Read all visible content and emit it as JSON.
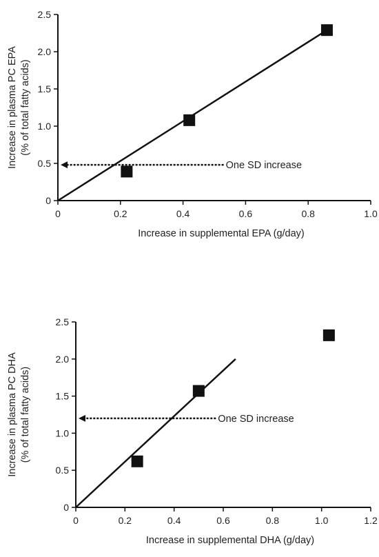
{
  "chart_data": [
    {
      "type": "scatter",
      "xlabel": "Increase in supplemental EPA (g/day)",
      "ylabel_lines": [
        "Increase in plasma PC EPA",
        "(% of total fatty acids)"
      ],
      "xlim": [
        0,
        1.0
      ],
      "ylim": [
        0,
        2.5
      ],
      "xticks": [
        0,
        0.2,
        0.4,
        0.6,
        0.8,
        1.0
      ],
      "xtick_labels": [
        "0",
        "0.2",
        "0.4",
        "0.6",
        "0.8",
        "1.0"
      ],
      "yticks": [
        0,
        0.5,
        1.0,
        1.5,
        2.0,
        2.5
      ],
      "ytick_labels": [
        "0",
        "0.5",
        "1.0",
        "1.5",
        "2.0",
        "2.5"
      ],
      "points": [
        {
          "x": 0.22,
          "y": 0.39
        },
        {
          "x": 0.42,
          "y": 1.08
        },
        {
          "x": 0.86,
          "y": 2.29
        }
      ],
      "fit_line": {
        "x": [
          0,
          0.86
        ],
        "y": [
          0,
          2.29
        ]
      },
      "annotation": {
        "text": "One SD increase",
        "y": 0.48,
        "x_from": 0.53,
        "x_to": 0.0
      }
    },
    {
      "type": "scatter",
      "xlabel": "Increase in supplemental DHA (g/day)",
      "ylabel_lines": [
        "Increase in plasma PC DHA",
        "(% of total fatty acids)"
      ],
      "xlim": [
        0,
        1.2
      ],
      "ylim": [
        0,
        2.5
      ],
      "xticks": [
        0,
        0.2,
        0.4,
        0.6,
        0.8,
        1.0,
        1.2
      ],
      "xtick_labels": [
        "0",
        "0.2",
        "0.4",
        "0.6",
        "0.8",
        "1.0",
        "1.2"
      ],
      "yticks": [
        0,
        0.5,
        1.0,
        1.5,
        2.0,
        2.5
      ],
      "ytick_labels": [
        "0",
        "0.5",
        "1.0",
        "1.5",
        "2.0",
        "2.5"
      ],
      "points": [
        {
          "x": 0.25,
          "y": 0.62
        },
        {
          "x": 0.5,
          "y": 1.57
        },
        {
          "x": 1.03,
          "y": 2.32
        }
      ],
      "fit_line": {
        "x": [
          0,
          0.65
        ],
        "y": [
          0,
          2.0
        ]
      },
      "annotation": {
        "text": "One SD increase",
        "y": 1.2,
        "x_from": 0.57,
        "x_to": 0.0
      }
    }
  ]
}
